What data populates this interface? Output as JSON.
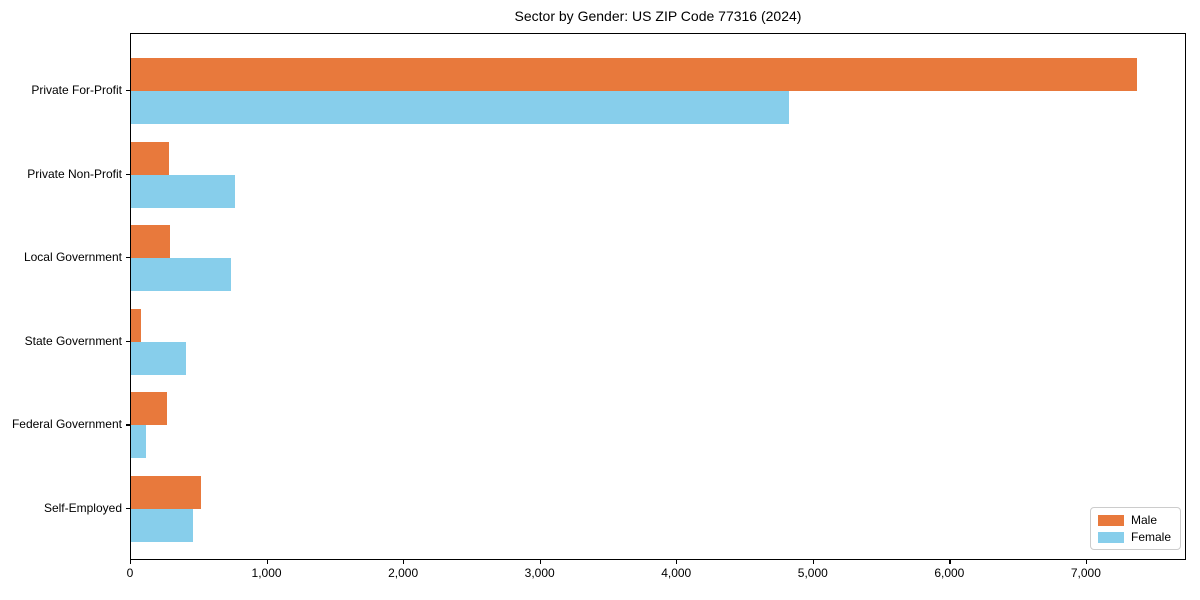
{
  "chart_data": {
    "type": "bar",
    "orientation": "horizontal",
    "title": "Sector by Gender: US ZIP Code 77316 (2024)",
    "categories": [
      "Private For-Profit",
      "Private Non-Profit",
      "Local Government",
      "State Government",
      "Federal Government",
      "Self-Employed"
    ],
    "series": [
      {
        "name": "Male",
        "color": "#e8793c",
        "values": [
          7365,
          275,
          285,
          75,
          260,
          515
        ]
      },
      {
        "name": "Female",
        "color": "#87ceeb",
        "values": [
          4815,
          760,
          735,
          405,
          110,
          455
        ]
      }
    ],
    "xlabel": "",
    "ylabel": "",
    "xlim": [
      0,
      7733
    ],
    "xticks": [
      0,
      1000,
      2000,
      3000,
      4000,
      5000,
      6000,
      7000
    ],
    "xtick_labels": [
      "0",
      "1,000",
      "2,000",
      "3,000",
      "4,000",
      "5,000",
      "6,000",
      "7,000"
    ],
    "grid": false,
    "legend_position": "lower right",
    "bar_group_order": "male-above-female-below"
  }
}
